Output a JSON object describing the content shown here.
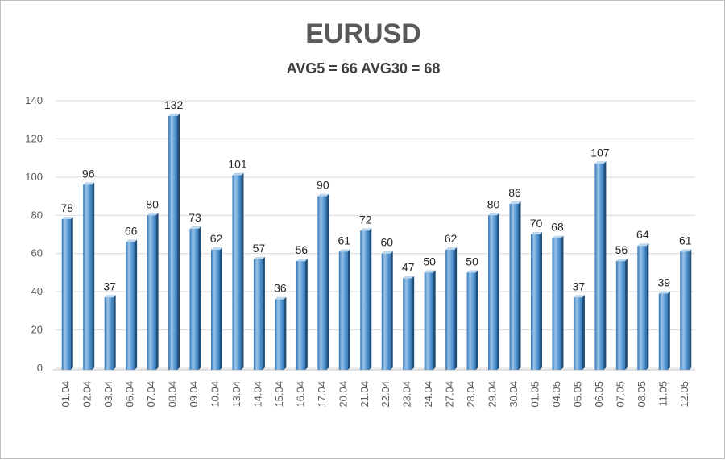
{
  "chart_data": {
    "type": "bar",
    "title": "EURUSD",
    "subtitle": "AVG5 = 66 AVG30 = 68",
    "categories": [
      "01.04",
      "02.04",
      "03.04",
      "06.04",
      "07.04",
      "08.04",
      "09.04",
      "10.04",
      "13.04",
      "14.04",
      "15.04",
      "16.04",
      "17.04",
      "20.04",
      "21.04",
      "22.04",
      "23.04",
      "24.04",
      "27.04",
      "28.04",
      "29.04",
      "30.04",
      "01.05",
      "04.05",
      "05.05",
      "06.05",
      "07.05",
      "08.05",
      "11.05",
      "12.05"
    ],
    "values": [
      78,
      96,
      37,
      66,
      80,
      132,
      73,
      62,
      101,
      57,
      36,
      56,
      90,
      61,
      72,
      60,
      47,
      50,
      62,
      50,
      80,
      86,
      70,
      68,
      37,
      107,
      56,
      64,
      39,
      61
    ],
    "ylim": [
      0,
      140
    ],
    "yticks": [
      0,
      20,
      40,
      60,
      80,
      100,
      120,
      140
    ],
    "xlabel": "",
    "ylabel": "",
    "grid": true,
    "legend": "none",
    "colors": {
      "bar": "#5b9bd5",
      "bar_light": "#9cc3e6",
      "bar_dark": "#2e75b6",
      "grid": "#d9d9d9"
    }
  }
}
